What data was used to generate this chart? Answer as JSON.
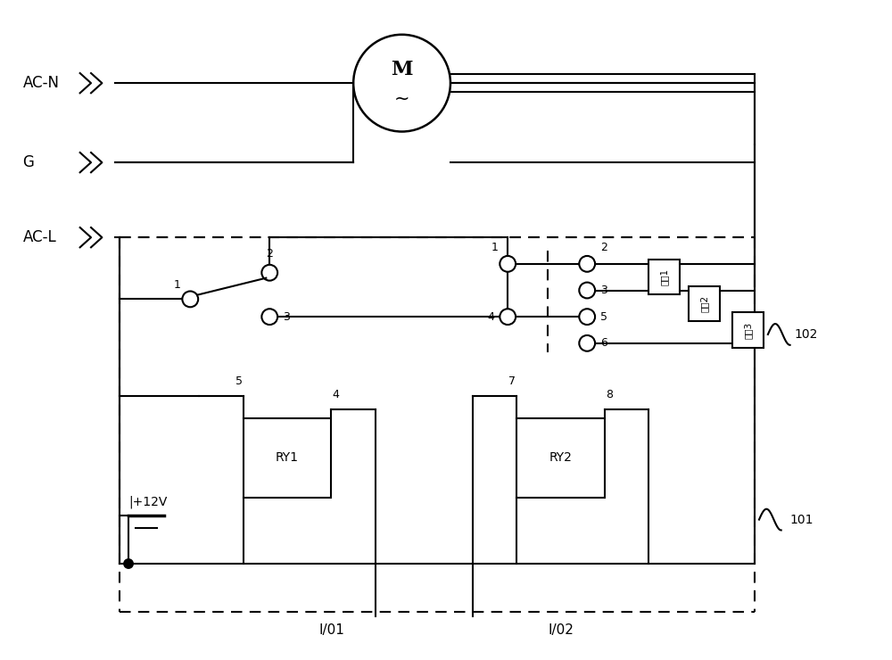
{
  "bg_color": "#ffffff",
  "line_color": "#000000",
  "figsize": [
    10.0,
    7.4
  ],
  "dpi": 100,
  "labels": {
    "AC_N": "AC-N",
    "G": "G",
    "AC_L": "AC-L",
    "RY1": "RY1",
    "RY2": "RY2",
    "plus12V": "|+12V",
    "IO1": "I/01",
    "IO2": "I/02",
    "label101": "101",
    "label102": "102",
    "wind1": "风速1",
    "wind2": "风速2",
    "wind3": "风速3"
  }
}
